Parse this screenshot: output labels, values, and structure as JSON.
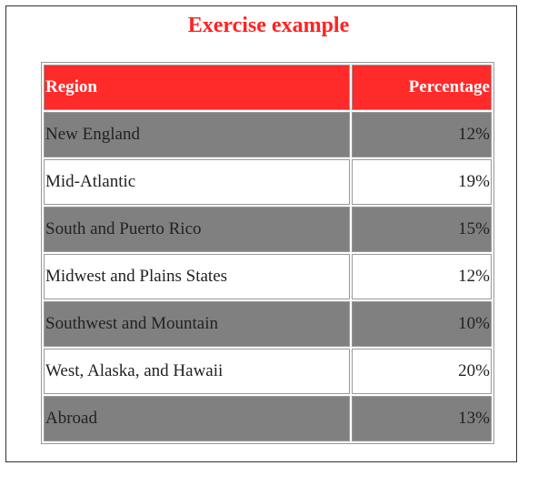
{
  "page": {
    "title": "Exercise example"
  },
  "table": {
    "headers": {
      "region": "Region",
      "percentage": "Percentage"
    },
    "rows": [
      {
        "region": "New England",
        "percentage": "12%"
      },
      {
        "region": "Mid-Atlantic",
        "percentage": "19%"
      },
      {
        "region": "South and Puerto Rico",
        "percentage": "15%"
      },
      {
        "region": "Midwest and Plains States",
        "percentage": "12%"
      },
      {
        "region": "Southwest and Mountain",
        "percentage": "10%"
      },
      {
        "region": "West, Alaska, and Hawaii",
        "percentage": "20%"
      },
      {
        "region": "Abroad",
        "percentage": "13%"
      }
    ],
    "colors": {
      "header_bg": "#ff2a2a",
      "shaded_row_bg": "#808080",
      "plain_row_bg": "#ffffff",
      "title_color": "#ff2222"
    }
  }
}
